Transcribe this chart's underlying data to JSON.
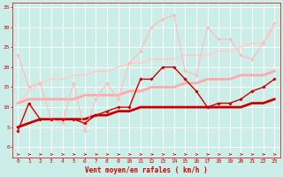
{
  "background_color": "#cceee8",
  "grid_color": "#ffffff",
  "xlabel": "Vent moyen/en rafales ( km/h )",
  "xlabel_color": "#cc0000",
  "tick_color": "#cc0000",
  "xlim": [
    -0.5,
    23.5
  ],
  "ylim": [
    -2.5,
    36
  ],
  "yticks": [
    0,
    5,
    10,
    15,
    20,
    25,
    30,
    35
  ],
  "xticks": [
    0,
    1,
    2,
    3,
    4,
    5,
    6,
    7,
    8,
    9,
    10,
    11,
    12,
    13,
    14,
    15,
    16,
    17,
    18,
    19,
    20,
    21,
    22,
    23
  ],
  "lines": [
    {
      "x": [
        0,
        1,
        2,
        3,
        4,
        5,
        6,
        7,
        8,
        9,
        10,
        11,
        12,
        13,
        14,
        15,
        16,
        17,
        18,
        19,
        20,
        21,
        22,
        23
      ],
      "y": [
        4,
        11,
        7,
        7,
        7,
        7,
        6,
        8,
        9,
        10,
        10,
        17,
        17,
        20,
        20,
        17,
        14,
        10,
        11,
        11,
        12,
        14,
        15,
        17
      ],
      "color": "#cc0000",
      "lw": 1.0,
      "marker": "D",
      "ms": 1.8,
      "zorder": 5
    },
    {
      "x": [
        0,
        1,
        2,
        3,
        4,
        5,
        6,
        7,
        8,
        9,
        10,
        11,
        12,
        13,
        14,
        15,
        16,
        17,
        18,
        19,
        20,
        21,
        22,
        23
      ],
      "y": [
        11,
        12,
        12,
        12,
        12,
        12,
        13,
        13,
        13,
        13,
        14,
        14,
        15,
        15,
        15,
        16,
        16,
        17,
        17,
        17,
        18,
        18,
        18,
        19
      ],
      "color": "#ffaaaa",
      "lw": 2.0,
      "marker": null,
      "ms": 0,
      "zorder": 3
    },
    {
      "x": [
        0,
        1,
        2,
        3,
        4,
        5,
        6,
        7,
        8,
        9,
        10,
        11,
        12,
        13,
        14,
        15,
        16,
        17,
        18,
        19,
        20,
        21,
        22,
        23
      ],
      "y": [
        5,
        6,
        7,
        7,
        7,
        7,
        7,
        8,
        8,
        9,
        9,
        10,
        10,
        10,
        10,
        10,
        10,
        10,
        10,
        10,
        10,
        11,
        11,
        12
      ],
      "color": "#cc0000",
      "lw": 2.0,
      "marker": null,
      "ms": 0,
      "zorder": 4
    },
    {
      "x": [
        0,
        1,
        2,
        3,
        4,
        5,
        6,
        7,
        8,
        9,
        10,
        11,
        12,
        13,
        14,
        15,
        16,
        17,
        18,
        19,
        20,
        21,
        22,
        23
      ],
      "y": [
        23,
        15,
        16,
        7,
        6,
        16,
        4,
        12,
        16,
        12,
        21,
        24,
        30,
        32,
        33,
        19,
        18,
        30,
        27,
        27,
        23,
        22,
        26,
        31
      ],
      "color": "#ffbbbb",
      "lw": 0.8,
      "marker": "D",
      "ms": 1.8,
      "zorder": 4
    },
    {
      "x": [
        0,
        1,
        2,
        3,
        4,
        5,
        6,
        7,
        8,
        9,
        10,
        11,
        12,
        13,
        14,
        15,
        16,
        17,
        18,
        19,
        20,
        21,
        22,
        23
      ],
      "y": [
        11,
        14,
        16,
        17,
        17,
        18,
        18,
        19,
        19,
        20,
        21,
        21,
        22,
        22,
        22,
        23,
        23,
        23,
        24,
        24,
        25,
        26,
        26,
        30
      ],
      "color": "#ffcccc",
      "lw": 1.2,
      "marker": null,
      "ms": 0,
      "zorder": 2
    }
  ]
}
